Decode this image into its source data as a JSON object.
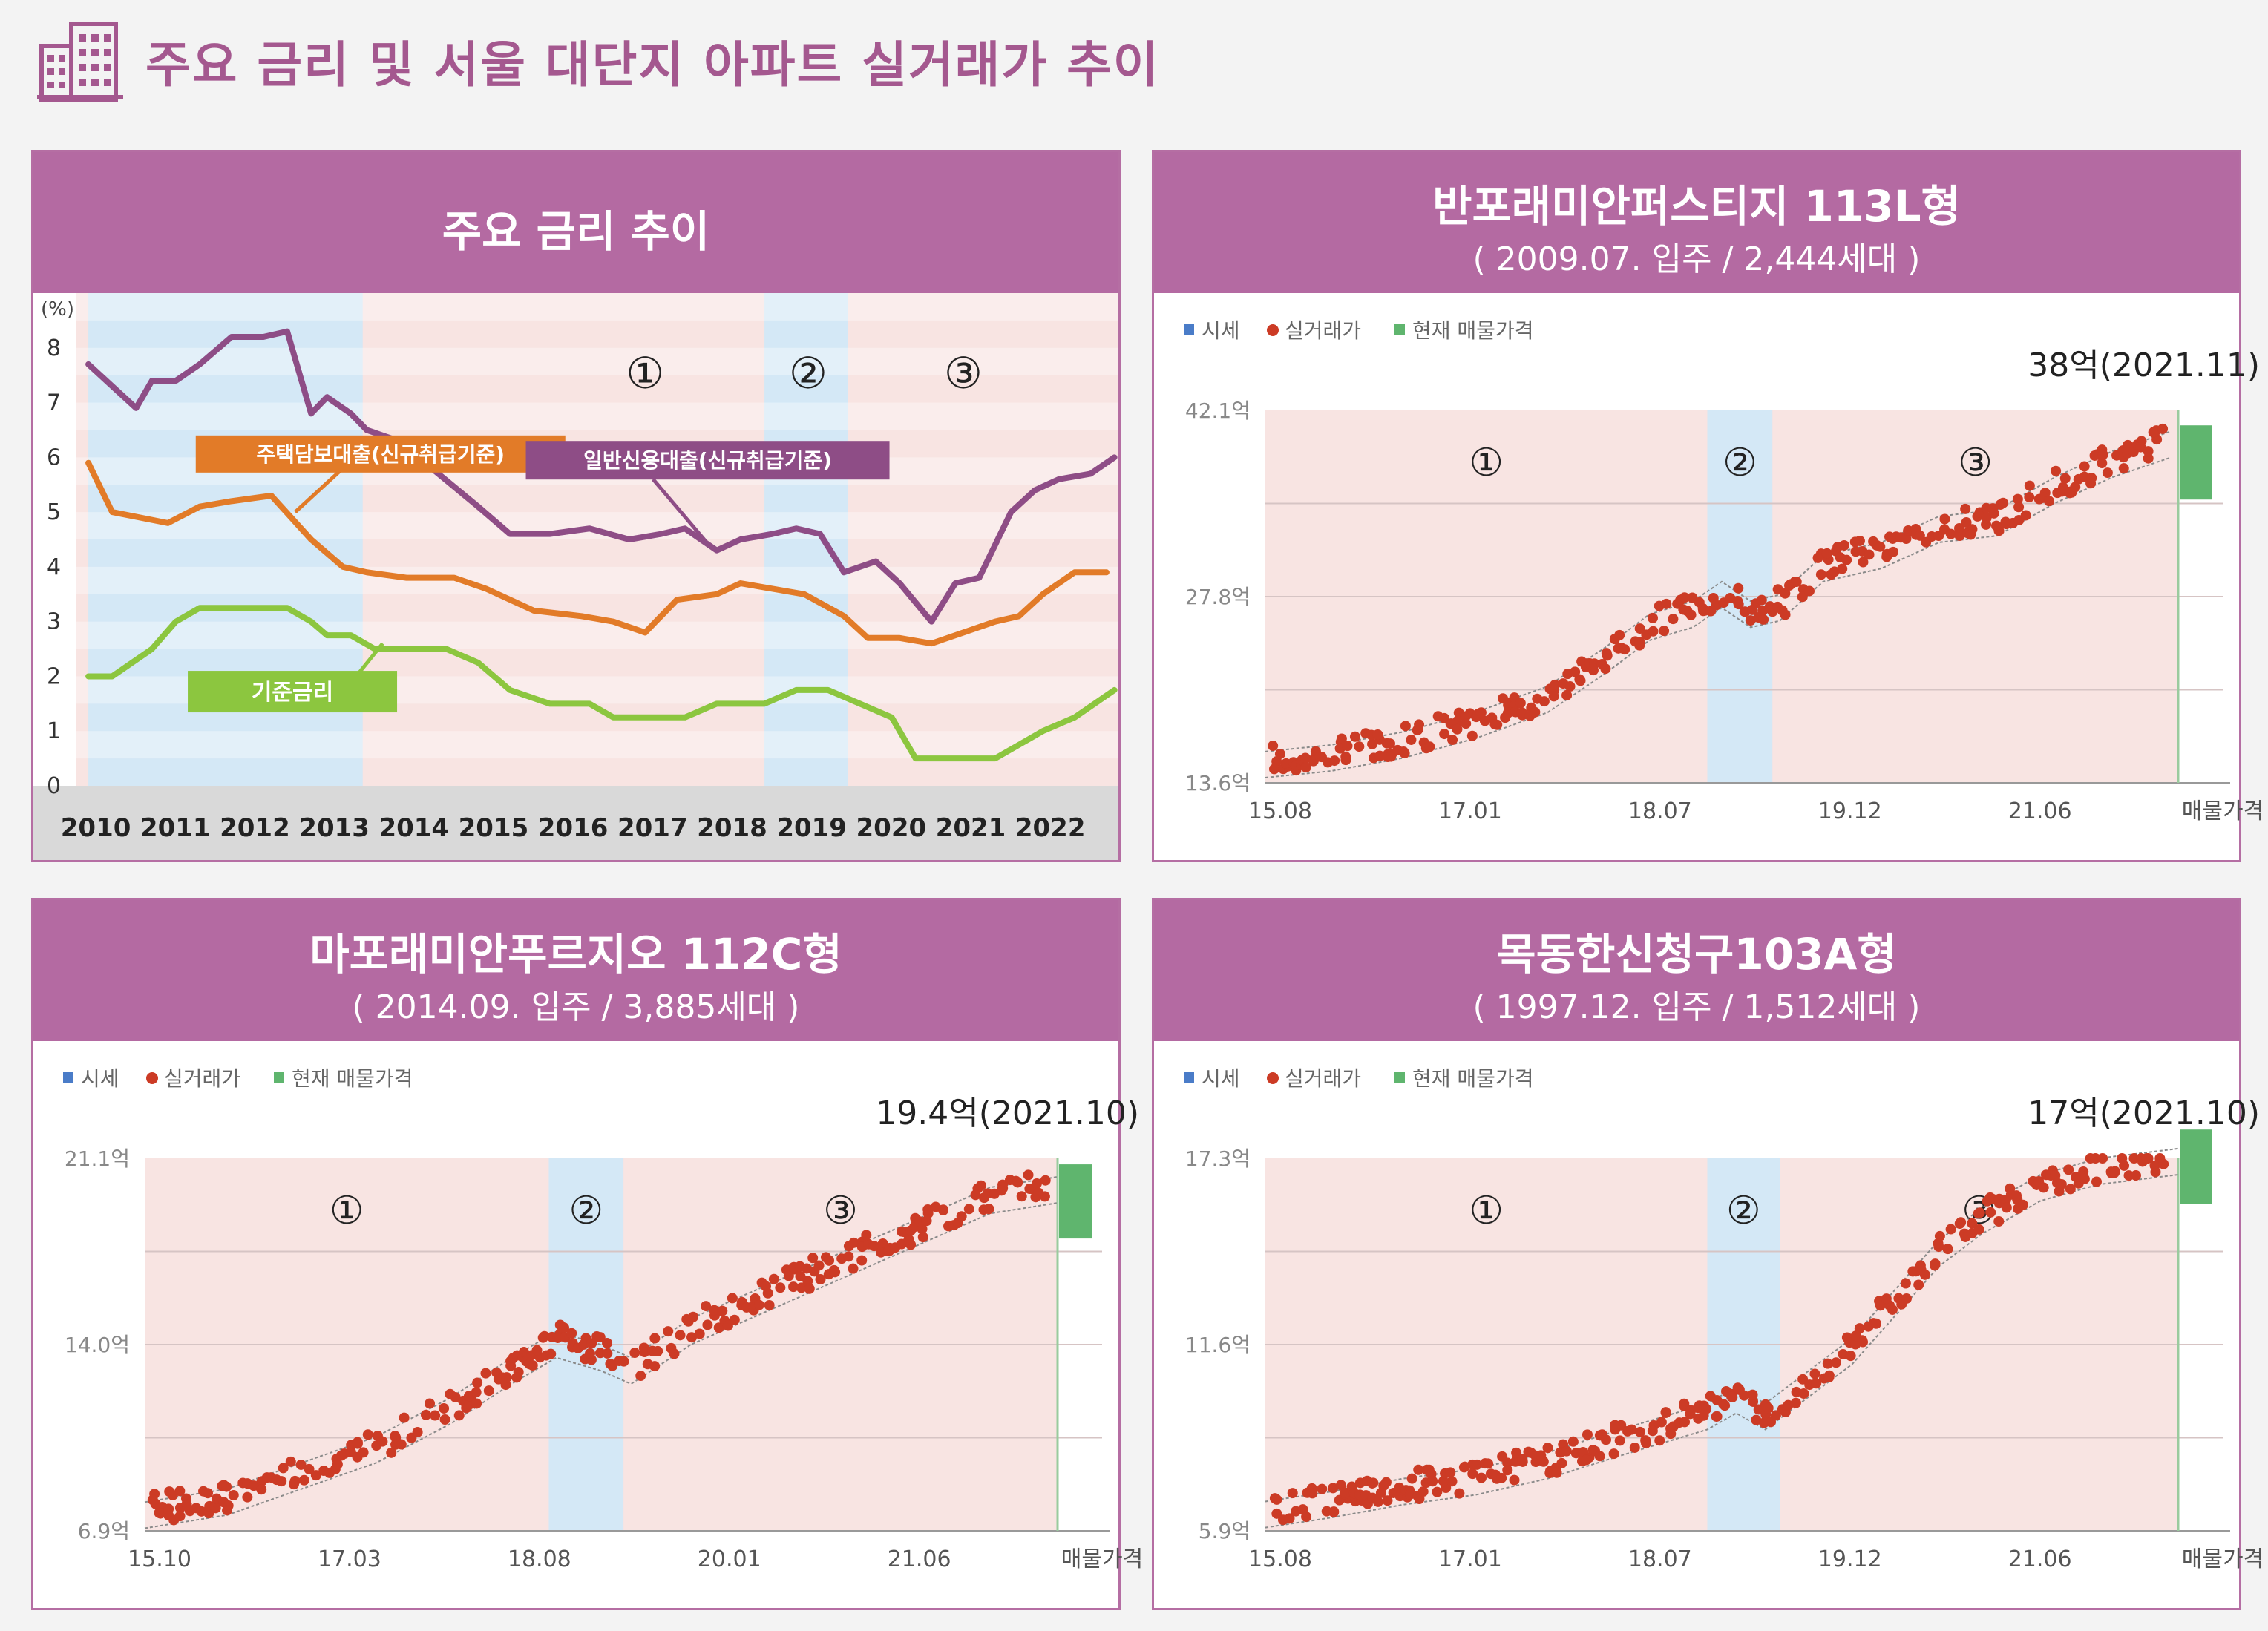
{
  "page_title": "주요 금리 및 서울 대단지 아파트 실거래가 추이",
  "colors": {
    "brand": "#b46aa2",
    "period_pink": "#f8e4e2",
    "period_blue": "#d4e8f6",
    "rate_mortgage": "#e27b28",
    "rate_credit": "#8e4d86",
    "rate_base": "#8cc63f",
    "trade_dot": "#cc3b25",
    "market_line": "#8a8a8a",
    "listing_bar": "#5fb56e"
  },
  "period_markers": [
    "①",
    "②",
    "③"
  ],
  "chart_data": [
    {
      "type": "line",
      "title": "주요 금리 추이",
      "y_unit_label": "(%)",
      "x_categories": [
        "2010",
        "2011",
        "2012",
        "2013",
        "2014",
        "2015",
        "2016",
        "2017",
        "2018",
        "2019",
        "2020",
        "2021",
        "2022"
      ],
      "ylim": [
        0,
        9
      ],
      "y_ticks": [
        0,
        1,
        2,
        3,
        4,
        5,
        6,
        7,
        8
      ],
      "periods": [
        {
          "marker": "①",
          "from": 2013.45,
          "to": 2018.5,
          "shade": "pink"
        },
        {
          "marker": "②",
          "from": 2018.5,
          "to": 2019.55,
          "shade": "blue"
        },
        {
          "marker": "③",
          "from": 2019.55,
          "to": 2022.9,
          "shade": "pink"
        }
      ],
      "extra_shades": [
        {
          "from": 2010,
          "to": 2013.45,
          "shade": "blue"
        }
      ],
      "series": [
        {
          "name": "일반신용대출(신규취급기준)",
          "color_key": "rate_credit",
          "x": [
            2010,
            2010.3,
            2010.6,
            2010.8,
            2011.1,
            2011.4,
            2011.8,
            2012.2,
            2012.5,
            2012.8,
            2013.0,
            2013.3,
            2013.5,
            2013.9,
            2014.4,
            2014.9,
            2015.3,
            2015.8,
            2016.3,
            2016.8,
            2017.2,
            2017.5,
            2017.9,
            2018.2,
            2018.6,
            2018.9,
            2019.2,
            2019.5,
            2019.9,
            2020.2,
            2020.6,
            2020.9,
            2021.2,
            2021.6,
            2021.9,
            2022.2,
            2022.6,
            2022.9
          ],
          "y": [
            7.7,
            7.3,
            6.9,
            7.4,
            7.4,
            7.7,
            8.2,
            8.2,
            8.3,
            6.8,
            7.1,
            6.8,
            6.5,
            6.3,
            5.7,
            5.1,
            4.6,
            4.6,
            4.7,
            4.5,
            4.6,
            4.7,
            4.3,
            4.5,
            4.6,
            4.7,
            4.6,
            3.9,
            4.1,
            3.7,
            3.0,
            3.7,
            3.8,
            5.0,
            5.4,
            5.6,
            5.7,
            6.0
          ]
        },
        {
          "name": "주택담보대출(신규취급기준)",
          "color_key": "rate_mortgage",
          "x": [
            2010,
            2010.3,
            2011.0,
            2011.4,
            2011.8,
            2012.3,
            2012.8,
            2013.2,
            2013.5,
            2014.0,
            2014.6,
            2015.0,
            2015.6,
            2016.2,
            2016.6,
            2017.0,
            2017.4,
            2017.9,
            2018.2,
            2018.6,
            2019.0,
            2019.5,
            2019.8,
            2020.2,
            2020.6,
            2021.0,
            2021.4,
            2021.7,
            2022.0,
            2022.4,
            2022.8
          ],
          "y": [
            5.9,
            5.0,
            4.8,
            5.1,
            5.2,
            5.3,
            4.5,
            4.0,
            3.9,
            3.8,
            3.8,
            3.6,
            3.2,
            3.1,
            3.0,
            2.8,
            3.4,
            3.5,
            3.7,
            3.6,
            3.5,
            3.1,
            2.7,
            2.7,
            2.6,
            2.8,
            3.0,
            3.1,
            3.5,
            3.9,
            3.9
          ]
        },
        {
          "name": "기준금리",
          "color_key": "rate_base",
          "x": [
            2010,
            2010.3,
            2010.8,
            2011.1,
            2011.4,
            2011.8,
            2012.5,
            2012.8,
            2013.0,
            2013.3,
            2013.6,
            2014.0,
            2014.5,
            2014.9,
            2015.3,
            2015.8,
            2016.3,
            2016.6,
            2017.0,
            2017.5,
            2017.9,
            2018.5,
            2018.9,
            2019.3,
            2019.7,
            2020.1,
            2020.4,
            2021.0,
            2021.4,
            2021.7,
            2022.0,
            2022.4,
            2022.9
          ],
          "y": [
            2.0,
            2.0,
            2.5,
            3.0,
            3.25,
            3.25,
            3.25,
            3.0,
            2.75,
            2.75,
            2.5,
            2.5,
            2.5,
            2.25,
            1.75,
            1.5,
            1.5,
            1.25,
            1.25,
            1.25,
            1.5,
            1.5,
            1.75,
            1.75,
            1.5,
            1.25,
            0.5,
            0.5,
            0.5,
            0.75,
            1.0,
            1.25,
            1.75
          ]
        }
      ]
    },
    {
      "type": "scatter",
      "title": "반포래미안퍼스티지 113L형",
      "subtitle": "( 2009.07. 입주 / 2,444세대 )",
      "legend": [
        "시세",
        "실거래가",
        "현재 매물가격"
      ],
      "current_price_label": "38억(2021.11)",
      "y_tick_labels": [
        "42.1억",
        "27.8억",
        "13.6억"
      ],
      "x_tick_labels": [
        "15.08",
        "17.01",
        "18.07",
        "19.12",
        "21.06",
        "매물가격"
      ],
      "ylim": [
        13.6,
        42.1
      ],
      "xlim": [
        2015.55,
        2021.85
      ],
      "periods": [
        {
          "marker": "①",
          "from": 2015.55,
          "to": 2018.6,
          "shade": "pink"
        },
        {
          "marker": "②",
          "from": 2018.6,
          "to": 2019.05,
          "shade": "blue"
        },
        {
          "marker": "③",
          "from": 2019.05,
          "to": 2021.85,
          "shade": "pink"
        }
      ],
      "listing_price": 38,
      "trend": {
        "x": [
          2015.55,
          2016.0,
          2016.5,
          2017.0,
          2017.5,
          2017.9,
          2018.2,
          2018.5,
          2018.7,
          2018.9,
          2019.1,
          2019.4,
          2019.8,
          2020.2,
          2020.6,
          2021.0,
          2021.4,
          2021.8
        ],
        "y": [
          14.0,
          14.5,
          15.5,
          17.0,
          19.0,
          22.0,
          24.5,
          25.5,
          27.0,
          25.5,
          26.0,
          29.0,
          30.0,
          32.0,
          32.5,
          35.0,
          37.0,
          38.5
        ]
      }
    },
    {
      "type": "scatter",
      "title": "마포래미안푸르지오 112C형",
      "subtitle": "( 2014.09. 입주 / 3,885세대 )",
      "legend": [
        "시세",
        "실거래가",
        "현재 매물가격"
      ],
      "current_price_label": "19.4억(2021.10)",
      "y_tick_labels": [
        "21.1억",
        "14.0억",
        "6.9억"
      ],
      "x_tick_labels": [
        "15.10",
        "17.03",
        "18.08",
        "20.01",
        "21.06",
        "매물가격"
      ],
      "ylim": [
        6.9,
        21.1
      ],
      "xlim": [
        2015.75,
        2021.85
      ],
      "periods": [
        {
          "marker": "①",
          "from": 2015.75,
          "to": 2018.45,
          "shade": "pink"
        },
        {
          "marker": "②",
          "from": 2018.45,
          "to": 2018.95,
          "shade": "blue"
        },
        {
          "marker": "③",
          "from": 2018.95,
          "to": 2021.85,
          "shade": "pink"
        }
      ],
      "listing_price": 19.4,
      "trend": {
        "x": [
          2015.75,
          2016.3,
          2016.8,
          2017.3,
          2017.8,
          2018.2,
          2018.5,
          2018.8,
          2019.0,
          2019.4,
          2019.8,
          2020.2,
          2020.6,
          2021.0,
          2021.4,
          2021.85
        ],
        "y": [
          7.0,
          7.5,
          8.5,
          9.5,
          11.0,
          12.5,
          13.5,
          13.0,
          12.5,
          14.0,
          15.0,
          16.0,
          17.0,
          18.0,
          19.0,
          19.4
        ]
      }
    },
    {
      "type": "scatter",
      "title": "목동한신청구103A형",
      "subtitle": "( 1997.12. 입주 / 1,512세대 )",
      "legend": [
        "시세",
        "실거래가",
        "현재 매물가격"
      ],
      "current_price_label": "17억(2021.10)",
      "y_tick_labels": [
        "17.3억",
        "11.6억",
        "5.9억"
      ],
      "x_tick_labels": [
        "15.08",
        "17.01",
        "18.07",
        "19.12",
        "21.06",
        "매물가격"
      ],
      "ylim": [
        5.9,
        17.3
      ],
      "xlim": [
        2015.55,
        2021.85
      ],
      "periods": [
        {
          "marker": "①",
          "from": 2015.55,
          "to": 2018.6,
          "shade": "pink"
        },
        {
          "marker": "②",
          "from": 2018.6,
          "to": 2019.1,
          "shade": "blue"
        },
        {
          "marker": "③",
          "from": 2019.1,
          "to": 2021.85,
          "shade": "pink"
        }
      ],
      "listing_price": 17,
      "trend": {
        "x": [
          2015.55,
          2016.0,
          2016.5,
          2017.0,
          2017.5,
          2018.0,
          2018.3,
          2018.6,
          2018.8,
          2019.0,
          2019.3,
          2019.6,
          2019.9,
          2020.2,
          2020.5,
          2020.9,
          2021.3,
          2021.85
        ],
        "y": [
          6.0,
          6.3,
          6.7,
          7.0,
          7.5,
          8.2,
          8.6,
          9.0,
          9.5,
          9.0,
          10.0,
          11.0,
          12.5,
          14.0,
          15.0,
          16.0,
          16.5,
          16.8
        ]
      }
    }
  ]
}
